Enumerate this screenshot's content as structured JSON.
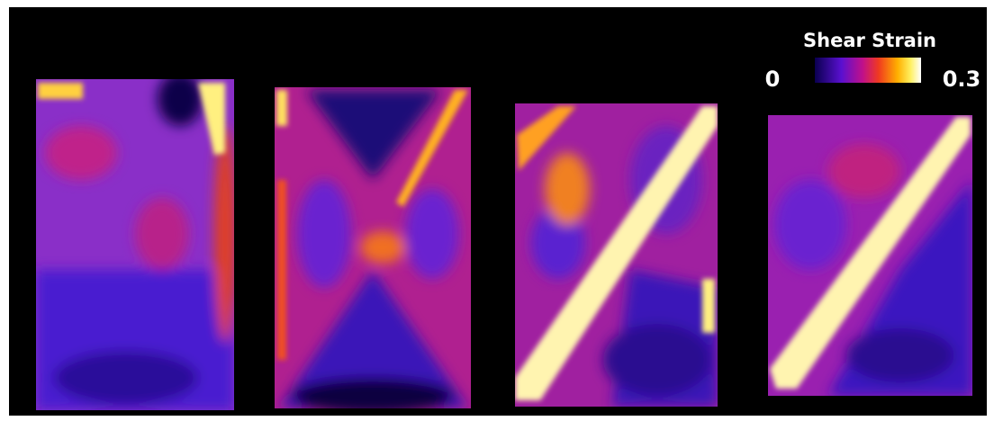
{
  "colorbar": {
    "title": "Shear Strain",
    "min": 0,
    "max": 0.3
  }
}
